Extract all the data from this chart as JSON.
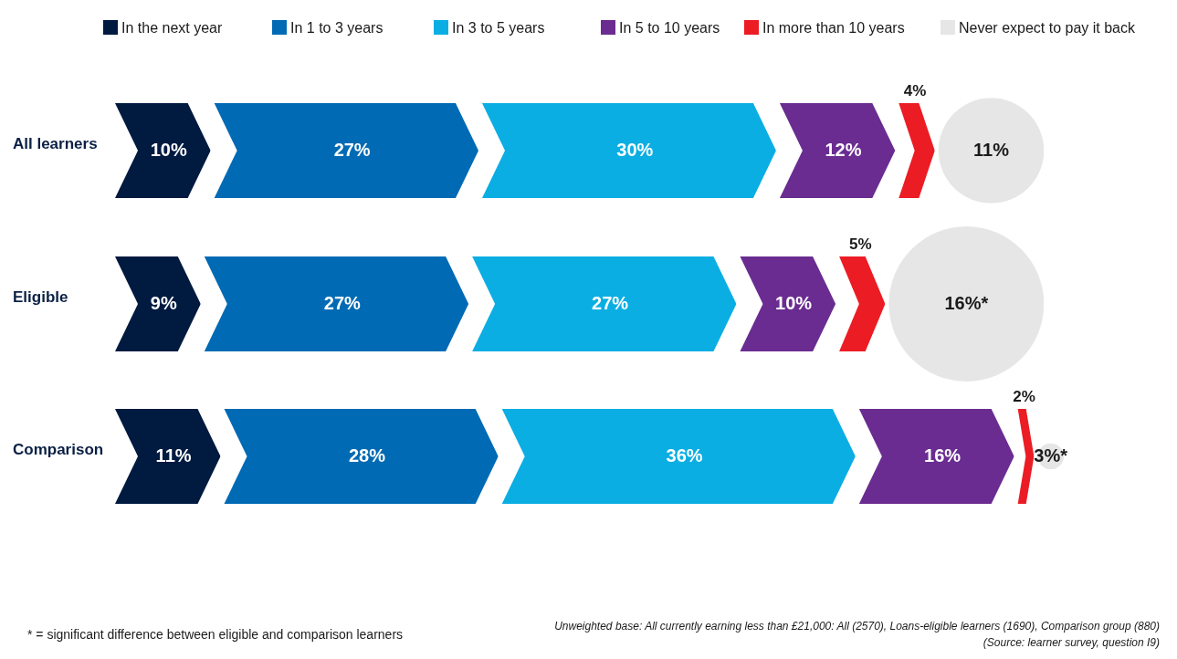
{
  "chart_data": {
    "type": "bar",
    "orientation": "horizontal",
    "stacked": true,
    "legend": "top",
    "data_labels": true,
    "categories": [
      "All learners",
      "Eligible",
      "Comparison"
    ],
    "series": [
      {
        "name": "In the next year",
        "color": "#001a40",
        "values": [
          10,
          9,
          11
        ],
        "value_labels": [
          "10%",
          "9%",
          "11%"
        ]
      },
      {
        "name": "In 1 to 3 years",
        "color": "#006ab4",
        "values": [
          27,
          27,
          28
        ],
        "value_labels": [
          "27%",
          "27%",
          "28%"
        ]
      },
      {
        "name": "In 3 to 5 years",
        "color": "#0aaee3",
        "values": [
          30,
          27,
          36
        ],
        "value_labels": [
          "30%",
          "27%",
          "36%"
        ]
      },
      {
        "name": "In 5 to 10 years",
        "color": "#6a2c91",
        "values": [
          12,
          10,
          16
        ],
        "value_labels": [
          "12%",
          "10%",
          "16%"
        ]
      },
      {
        "name": "In more than 10 years",
        "color": "#ec1c24",
        "values": [
          4,
          5,
          2
        ],
        "value_labels": [
          "4%",
          "5%",
          "2%"
        ]
      },
      {
        "name": "Never expect to pay it back",
        "color": "#e6e6e6",
        "marker": "circle",
        "values": [
          11,
          16,
          3
        ],
        "value_labels": [
          "11%",
          "16%*",
          "3%*"
        ]
      }
    ],
    "annotations": [
      "* = significant difference between eligible and comparison learners",
      "Unweighted base: All currently earning less than £21,000: All (2570), Loans-eligible learners (1690), Comparison group (880)",
      "(Source: learner survey, question I9)"
    ]
  }
}
